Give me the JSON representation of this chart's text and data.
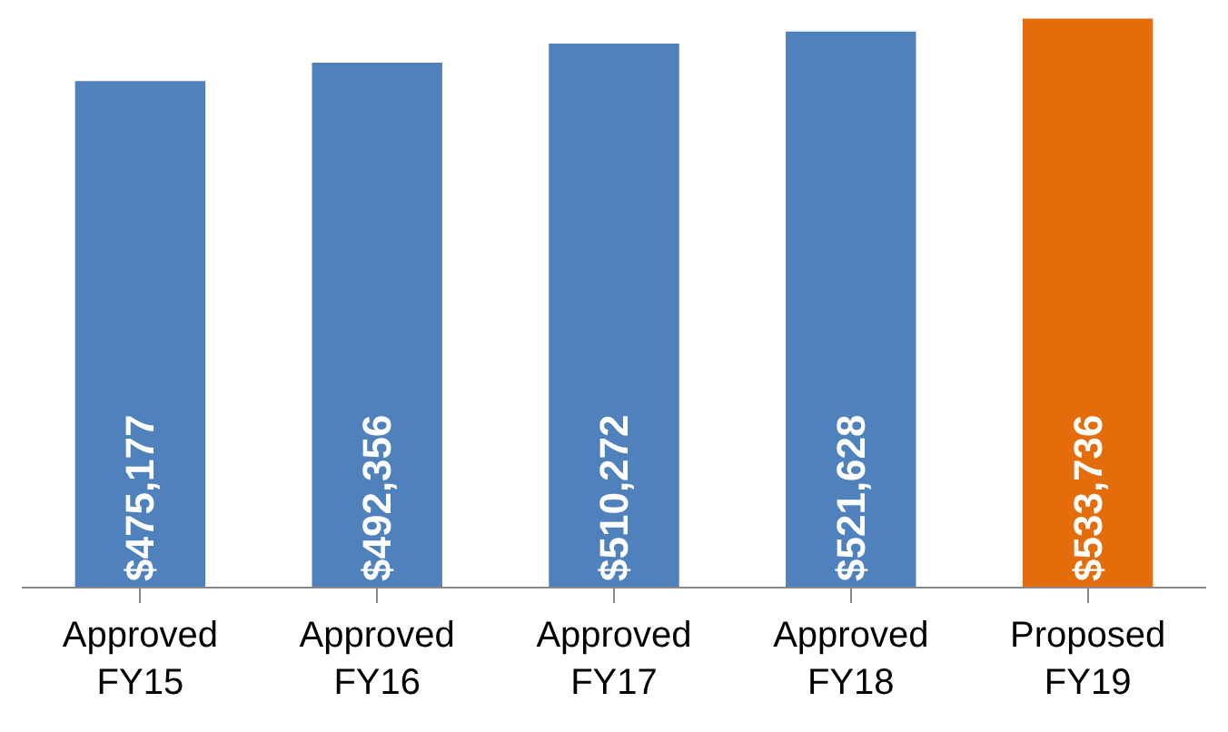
{
  "chart_data": {
    "type": "bar",
    "categories": [
      "Approved\nFY15",
      "Approved\nFY16",
      "Approved\nFY17",
      "Approved\nFY18",
      "Proposed\nFY19"
    ],
    "values": [
      475177,
      492356,
      510272,
      521628,
      533736
    ],
    "colors": [
      "#4f81bd",
      "#4f81bd",
      "#4f81bd",
      "#4f81bd",
      "#e46c0a"
    ],
    "value_labels": [
      "$475,177",
      "$492,356",
      "$510,272",
      "$521,628",
      "$533,736"
    ]
  }
}
